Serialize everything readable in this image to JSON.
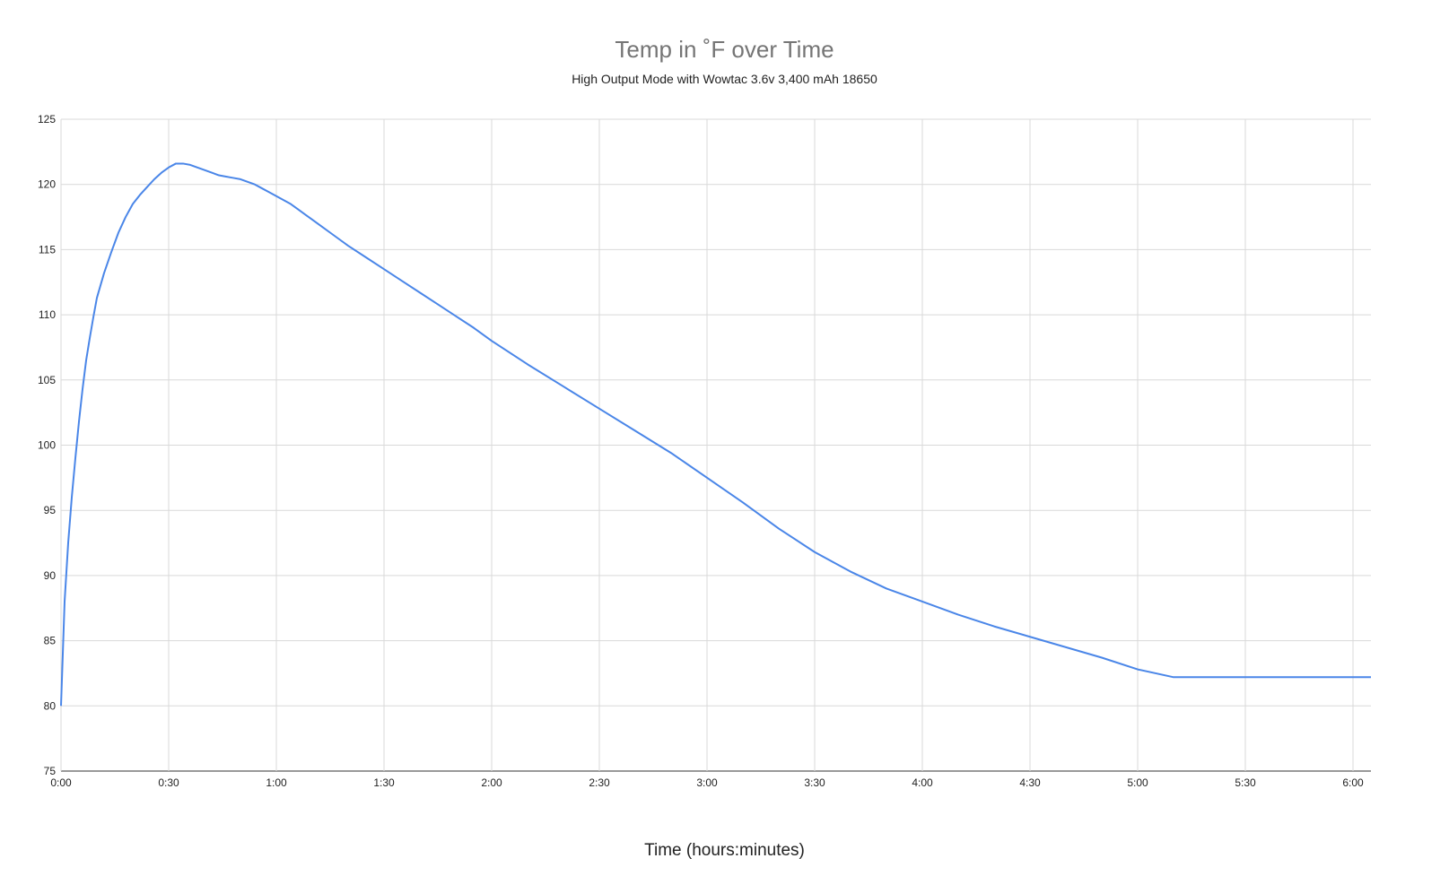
{
  "chart_data": {
    "type": "line",
    "title": "Temp in ˚F over Time",
    "subtitle": "High Output Mode with Wowtac 3.6v 3,400 mAh 18650",
    "xlabel": "Time (hours:minutes)",
    "ylabel": "",
    "x_unit": "minutes",
    "xlim": [
      0,
      365
    ],
    "ylim": [
      75,
      125
    ],
    "x_ticks": [
      {
        "value": 0,
        "label": "0:00"
      },
      {
        "value": 30,
        "label": "0:30"
      },
      {
        "value": 60,
        "label": "1:00"
      },
      {
        "value": 90,
        "label": "1:30"
      },
      {
        "value": 120,
        "label": "2:00"
      },
      {
        "value": 150,
        "label": "2:30"
      },
      {
        "value": 180,
        "label": "3:00"
      },
      {
        "value": 210,
        "label": "3:30"
      },
      {
        "value": 240,
        "label": "4:00"
      },
      {
        "value": 270,
        "label": "4:30"
      },
      {
        "value": 300,
        "label": "5:00"
      },
      {
        "value": 330,
        "label": "5:30"
      },
      {
        "value": 360,
        "label": "6:00"
      }
    ],
    "y_ticks": [
      {
        "value": 75,
        "label": "75"
      },
      {
        "value": 80,
        "label": "80"
      },
      {
        "value": 85,
        "label": "85"
      },
      {
        "value": 90,
        "label": "90"
      },
      {
        "value": 95,
        "label": "95"
      },
      {
        "value": 100,
        "label": "100"
      },
      {
        "value": 105,
        "label": "105"
      },
      {
        "value": 110,
        "label": "110"
      },
      {
        "value": 115,
        "label": "115"
      },
      {
        "value": 120,
        "label": "120"
      },
      {
        "value": 125,
        "label": "125"
      }
    ],
    "grid": true,
    "legend": "none",
    "series": [
      {
        "color": "#4a86e8",
        "x": [
          0,
          1,
          2,
          3,
          4,
          5,
          6,
          7,
          8,
          9,
          10,
          12,
          14,
          16,
          18,
          20,
          22,
          24,
          26,
          28,
          30,
          32,
          34,
          36,
          38,
          40,
          42,
          44,
          46,
          48,
          50,
          52,
          54,
          56,
          58,
          60,
          62,
          64,
          66,
          68,
          70,
          75,
          80,
          85,
          90,
          95,
          100,
          105,
          110,
          115,
          120,
          130,
          140,
          150,
          160,
          170,
          180,
          190,
          200,
          210,
          220,
          230,
          240,
          250,
          260,
          270,
          280,
          290,
          300,
          310,
          320,
          330,
          340,
          350,
          360,
          365
        ],
        "values": [
          80.0,
          88.0,
          92.5,
          96.0,
          99.0,
          101.8,
          104.3,
          106.5,
          108.2,
          109.8,
          111.3,
          113.2,
          114.8,
          116.3,
          117.5,
          118.5,
          119.2,
          119.8,
          120.4,
          120.9,
          121.3,
          121.6,
          121.6,
          121.5,
          121.3,
          121.1,
          120.9,
          120.7,
          120.6,
          120.5,
          120.4,
          120.2,
          120.0,
          119.7,
          119.4,
          119.1,
          118.8,
          118.5,
          118.1,
          117.7,
          117.3,
          116.3,
          115.3,
          114.4,
          113.5,
          112.6,
          111.7,
          110.8,
          109.9,
          109.0,
          108.0,
          106.2,
          104.5,
          102.8,
          101.1,
          99.4,
          97.5,
          95.6,
          93.6,
          91.8,
          90.3,
          89.0,
          88.0,
          87.0,
          86.1,
          85.3,
          84.5,
          83.7,
          82.8,
          82.2,
          82.2,
          82.2,
          82.2,
          82.2,
          82.2,
          82.2
        ]
      }
    ]
  }
}
